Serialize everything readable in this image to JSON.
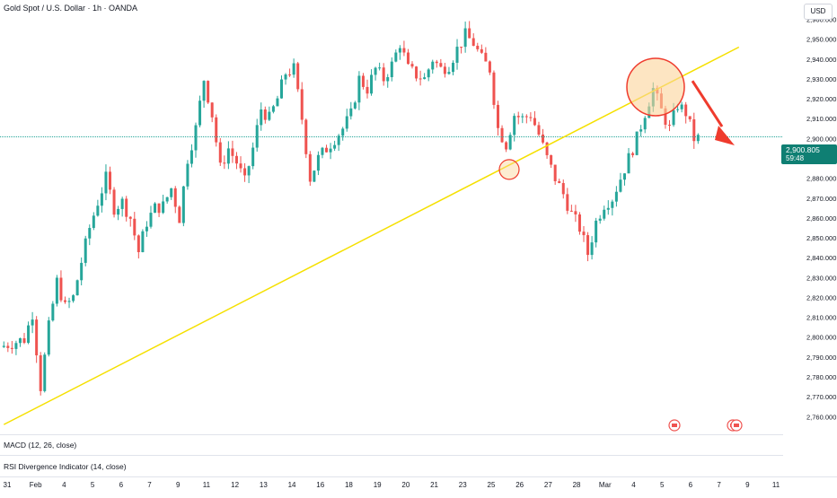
{
  "header": {
    "symbol_title": "Gold Spot / U.S. Dollar · 1h · OANDA",
    "currency": "USD"
  },
  "current_price": {
    "value": "2,900.805",
    "countdown": "59:48"
  },
  "indicators": [
    {
      "label": "MACD (12, 26, close)"
    },
    {
      "label": "RSI Divergence Indicator (14, close)"
    }
  ],
  "chart_data": {
    "type": "candlestick",
    "title": "Gold Spot / U.S. Dollar · 1h · OANDA",
    "y_axis": {
      "ylim": [
        2752,
        2967
      ],
      "tick_labels": [
        "2,960.000",
        "2,950.000",
        "2,940.000",
        "2,930.000",
        "2,920.000",
        "2,910.000",
        "2,900.000",
        "2,890.000",
        "2,880.000",
        "2,870.000",
        "2,860.000",
        "2,850.000",
        "2,840.000",
        "2,830.000",
        "2,820.000",
        "2,810.000",
        "2,800.000",
        "2,790.000",
        "2,780.000",
        "2,770.000",
        "2,760.000"
      ],
      "tick_values": [
        2960,
        2950,
        2940,
        2930,
        2920,
        2910,
        2900,
        2890,
        2880,
        2870,
        2860,
        2850,
        2840,
        2830,
        2820,
        2810,
        2800,
        2790,
        2780,
        2770,
        2760
      ]
    },
    "x_axis": {
      "tick_labels": [
        "31",
        "Feb",
        "4",
        "5",
        "6",
        "7",
        "9",
        "11",
        "12",
        "13",
        "14",
        "16",
        "18",
        "19",
        "20",
        "21",
        "23",
        "25",
        "26",
        "27",
        "28",
        "Mar",
        "4",
        "5",
        "6",
        "7",
        "9",
        "11"
      ],
      "tick_index": [
        0,
        7,
        14,
        21,
        28,
        35,
        42,
        49,
        56,
        63,
        70,
        77,
        84,
        91,
        98,
        105,
        112,
        119,
        126,
        133,
        140,
        147,
        154,
        161,
        168,
        175,
        182,
        189
      ]
    },
    "price_path": [
      [
        0,
        2795
      ],
      [
        6,
        2799
      ],
      [
        8,
        2812
      ],
      [
        10,
        2775
      ],
      [
        12,
        2805
      ],
      [
        14,
        2828
      ],
      [
        16,
        2815
      ],
      [
        18,
        2820
      ],
      [
        20,
        2838
      ],
      [
        22,
        2855
      ],
      [
        24,
        2868
      ],
      [
        26,
        2880
      ],
      [
        28,
        2865
      ],
      [
        30,
        2868
      ],
      [
        32,
        2860
      ],
      [
        34,
        2843
      ],
      [
        36,
        2858
      ],
      [
        38,
        2865
      ],
      [
        40,
        2866
      ],
      [
        42,
        2875
      ],
      [
        44,
        2860
      ],
      [
        46,
        2890
      ],
      [
        48,
        2905
      ],
      [
        50,
        2930
      ],
      [
        52,
        2912
      ],
      [
        54,
        2885
      ],
      [
        56,
        2895
      ],
      [
        58,
        2888
      ],
      [
        60,
        2878
      ],
      [
        62,
        2895
      ],
      [
        64,
        2915
      ],
      [
        66,
        2910
      ],
      [
        68,
        2920
      ],
      [
        70,
        2933
      ],
      [
        72,
        2935
      ],
      [
        74,
        2910
      ],
      [
        76,
        2880
      ],
      [
        78,
        2890
      ],
      [
        80,
        2895
      ],
      [
        82,
        2900
      ],
      [
        84,
        2905
      ],
      [
        86,
        2912
      ],
      [
        88,
        2930
      ],
      [
        90,
        2925
      ],
      [
        92,
        2935
      ],
      [
        94,
        2930
      ],
      [
        96,
        2937
      ],
      [
        98,
        2948
      ],
      [
        100,
        2935
      ],
      [
        102,
        2932
      ],
      [
        104,
        2930
      ],
      [
        106,
        2940
      ],
      [
        108,
        2935
      ],
      [
        110,
        2937
      ],
      [
        112,
        2945
      ],
      [
        114,
        2952
      ],
      [
        116,
        2948
      ],
      [
        118,
        2940
      ],
      [
        120,
        2935
      ],
      [
        122,
        2905
      ],
      [
        124,
        2897
      ],
      [
        126,
        2912
      ],
      [
        128,
        2910
      ],
      [
        130,
        2912
      ],
      [
        132,
        2902
      ],
      [
        134,
        2890
      ],
      [
        136,
        2880
      ],
      [
        138,
        2872
      ],
      [
        140,
        2862
      ],
      [
        142,
        2855
      ],
      [
        144,
        2842
      ],
      [
        146,
        2858
      ],
      [
        148,
        2867
      ],
      [
        150,
        2870
      ],
      [
        152,
        2880
      ],
      [
        154,
        2890
      ],
      [
        156,
        2900
      ],
      [
        158,
        2913
      ],
      [
        160,
        2925
      ],
      [
        162,
        2914
      ],
      [
        164,
        2905
      ],
      [
        166,
        2917
      ],
      [
        168,
        2913
      ],
      [
        170,
        2900
      ]
    ],
    "bars_total": 171,
    "trendline": {
      "start": [
        0,
        2756
      ],
      "end": [
        180,
        2946
      ],
      "color": "#f5e000"
    },
    "current_price_value": 2900.805,
    "annotations": [
      {
        "type": "circle",
        "at_price": 2888,
        "label": ""
      },
      {
        "type": "circle",
        "at_price": 2925,
        "label": ""
      },
      {
        "type": "arrow",
        "direction": "down"
      }
    ],
    "colors": {
      "up": "#26a69a",
      "down": "#ef5350",
      "trendline": "#f5e000",
      "annotation": "#ef3b2d",
      "circle_fill": "#fbd49a",
      "price_line": "#26a69a"
    },
    "grid": false
  }
}
